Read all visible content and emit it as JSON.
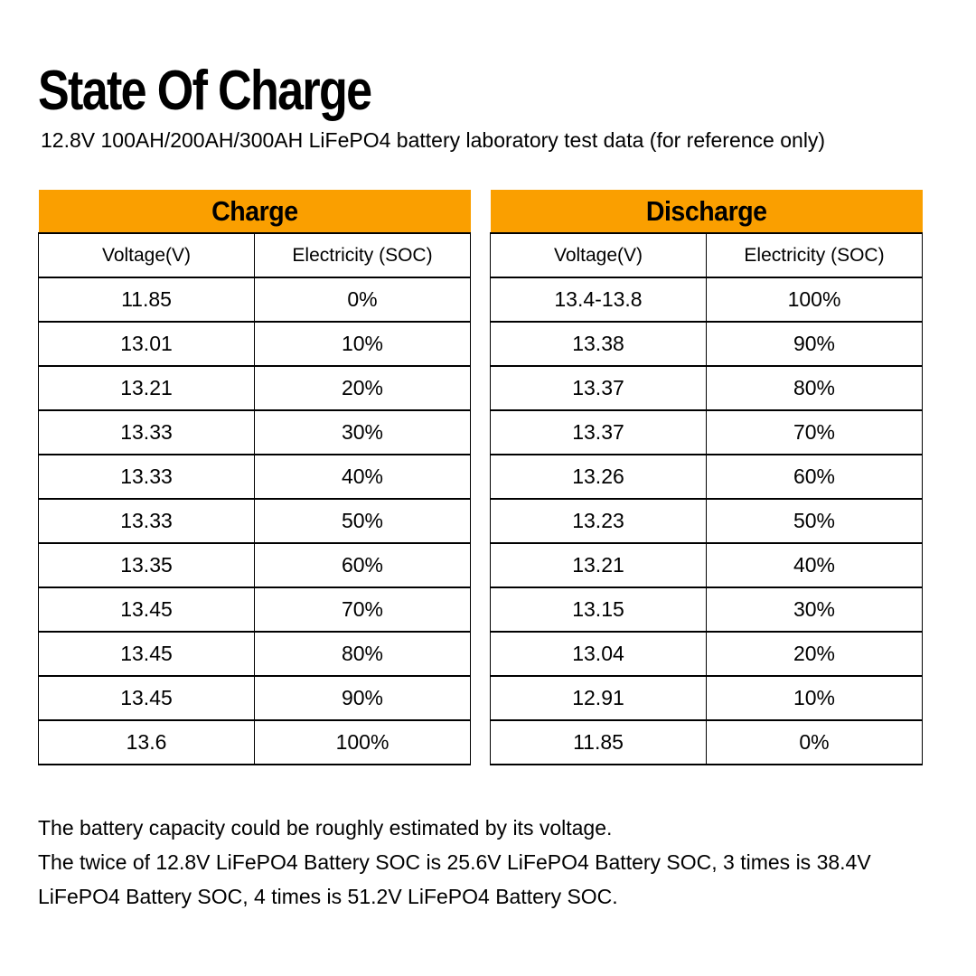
{
  "page": {
    "title": "State Of Charge",
    "subtitle": "12.8V 100AH/200AH/300AH LiFePO4 battery laboratory test data (for reference only)"
  },
  "chart_data": [
    {
      "type": "table",
      "title": "Charge",
      "columns": [
        "Voltage(V)",
        "Electricity (SOC)"
      ],
      "rows": [
        [
          "11.85",
          "0%"
        ],
        [
          "13.01",
          "10%"
        ],
        [
          "13.21",
          "20%"
        ],
        [
          "13.33",
          "30%"
        ],
        [
          "13.33",
          "40%"
        ],
        [
          "13.33",
          "50%"
        ],
        [
          "13.35",
          "60%"
        ],
        [
          "13.45",
          "70%"
        ],
        [
          "13.45",
          "80%"
        ],
        [
          "13.45",
          "90%"
        ],
        [
          "13.6",
          "100%"
        ]
      ]
    },
    {
      "type": "table",
      "title": "Discharge",
      "columns": [
        "Voltage(V)",
        "Electricity (SOC)"
      ],
      "rows": [
        [
          "13.4-13.8",
          "100%"
        ],
        [
          "13.38",
          "90%"
        ],
        [
          "13.37",
          "80%"
        ],
        [
          "13.37",
          "70%"
        ],
        [
          "13.26",
          "60%"
        ],
        [
          "13.23",
          "50%"
        ],
        [
          "13.21",
          "40%"
        ],
        [
          "13.15",
          "30%"
        ],
        [
          "13.04",
          "20%"
        ],
        [
          "12.91",
          "10%"
        ],
        [
          "11.85",
          "0%"
        ]
      ]
    }
  ],
  "footer": {
    "lines": [
      "The battery capacity could be roughly estimated by its voltage.",
      "The twice of 12.8V LiFePO4 Battery SOC is 25.6V LiFePO4 Battery SOC, 3 times is 38.4V",
      "LiFePO4 Battery SOC, 4 times is 51.2V LiFePO4 Battery SOC."
    ]
  },
  "colors": {
    "header_orange": "#FA9F00",
    "border": "#000000",
    "text": "#000000",
    "background": "#FFFFFF"
  }
}
